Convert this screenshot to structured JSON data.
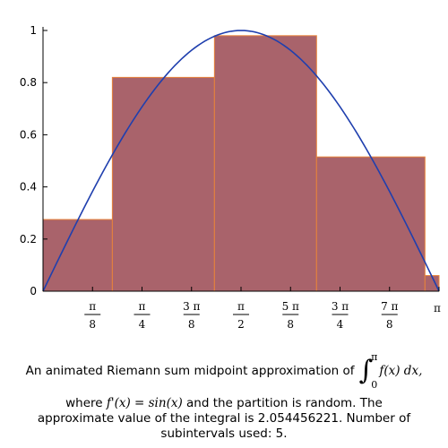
{
  "chart_data": {
    "type": "bar",
    "title": "",
    "xlabel": "",
    "ylabel": "",
    "xlim": [
      0,
      3.14159265
    ],
    "ylim": [
      0,
      1
    ],
    "grid": false,
    "y_ticks": [
      {
        "value": 0,
        "label": "0"
      },
      {
        "value": 0.2,
        "label": "0.2"
      },
      {
        "value": 0.4,
        "label": "0.4"
      },
      {
        "value": 0.6,
        "label": "0.6"
      },
      {
        "value": 0.8,
        "label": "0.8"
      },
      {
        "value": 1,
        "label": "1"
      }
    ],
    "x_ticks": [
      {
        "value": 0.3927,
        "num": "π",
        "den": "8"
      },
      {
        "value": 0.7854,
        "num": "π",
        "den": "4"
      },
      {
        "value": 1.1781,
        "num": "3 π",
        "den": "8"
      },
      {
        "value": 1.5708,
        "num": "π",
        "den": "2"
      },
      {
        "value": 1.9635,
        "num": "5 π",
        "den": "8"
      },
      {
        "value": 2.3562,
        "num": "3 π",
        "den": "4"
      },
      {
        "value": 2.7489,
        "num": "7 π",
        "den": "8"
      },
      {
        "value": 3.1416,
        "num": "π",
        "den": ""
      }
    ],
    "rectangles": [
      {
        "x0": 0.0,
        "x1": 0.55,
        "height": 0.275
      },
      {
        "x0": 0.55,
        "x1": 1.36,
        "height": 0.82
      },
      {
        "x0": 1.36,
        "x1": 2.17,
        "height": 0.98
      },
      {
        "x0": 2.17,
        "x1": 3.03,
        "height": 0.515
      },
      {
        "x0": 3.03,
        "x1": 3.1416,
        "height": 0.06
      }
    ],
    "curve": {
      "function": "sin(x)",
      "domain": [
        0,
        3.14159265
      ]
    },
    "colors": {
      "rect_fill": "#a9636b",
      "rect_edge": "#e8833a",
      "curve": "#1f3fae"
    }
  },
  "caption": {
    "line1_text": "An animated Riemann sum midpoint approximation of",
    "integral_upper": "π",
    "integral_lower": "0",
    "integrand": "f(x) dx,",
    "line2_pre": "where",
    "line2_func": "f'(x) = sin(x)",
    "line2_post": "and the partition is random.  The approximate value of the integral is 2.054456221.  Number of subintervals used: 5."
  }
}
